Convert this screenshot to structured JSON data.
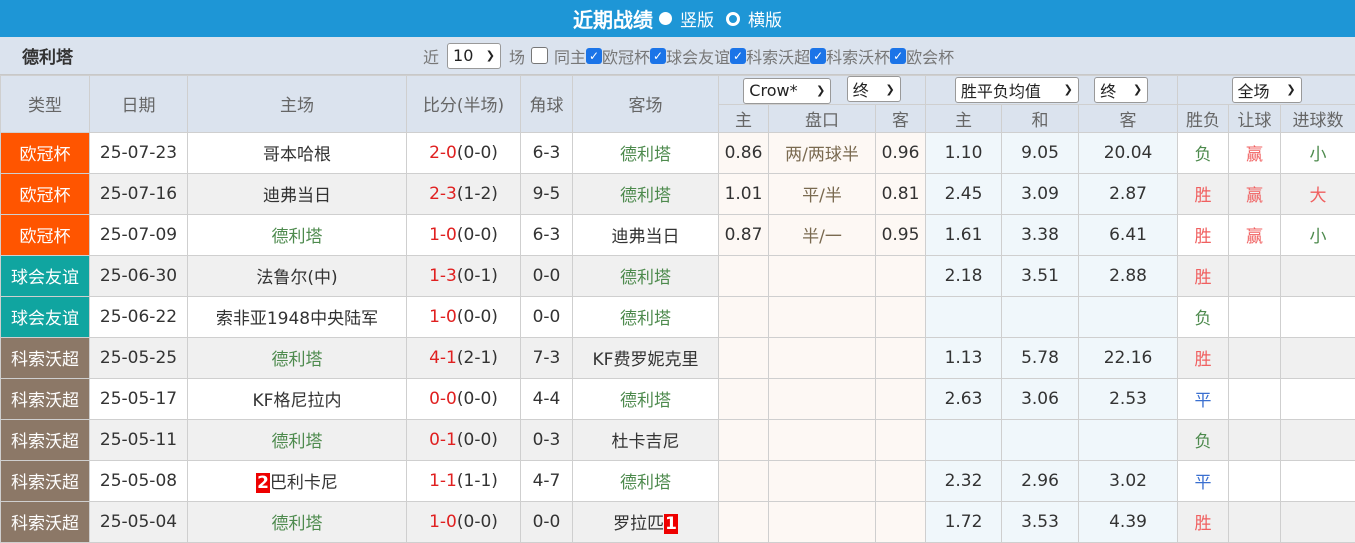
{
  "title": {
    "text": "近期战绩",
    "option_vertical": "竖版",
    "option_horizontal": "横版",
    "selected": "竖版"
  },
  "filter": {
    "team": "德利塔",
    "near_label": "近",
    "count": "10",
    "count_unit": "场",
    "same_home_label": "同主",
    "same_home_checked": false,
    "leagues": [
      {
        "label": "欧冠杯",
        "checked": true
      },
      {
        "label": "球会友谊",
        "checked": true
      },
      {
        "label": "科索沃超",
        "checked": true
      },
      {
        "label": "科索沃杯",
        "checked": true
      },
      {
        "label": "欧会杯",
        "checked": true
      }
    ]
  },
  "header": {
    "type": "类型",
    "date": "日期",
    "home": "主场",
    "score": "比分(半场)",
    "corner": "角球",
    "away": "客场",
    "ah_company": "Crow*",
    "ah_stage": "终",
    "eu_type": "胜平负均值",
    "eu_stage": "终",
    "period": "全场",
    "ah_home": "主",
    "ah_line": "盘口",
    "ah_away": "客",
    "eu_home": "主",
    "eu_draw": "和",
    "eu_away": "客",
    "result": "胜负",
    "handicap": "让球",
    "goals": "进球数"
  },
  "colors": {
    "欧冠杯": "#ff5500",
    "球会友谊": "#10a5a0",
    "科索沃超": "#8c7867",
    "team_highlight": "#4d8a4d",
    "score": "#e02020"
  },
  "rows": [
    {
      "type": "欧冠杯",
      "date": "25-07-23",
      "home": "哥本哈根",
      "home_hl": false,
      "ft": "2-0",
      "ht": "(0-0)",
      "corner": "6-3",
      "away": "德利塔",
      "away_hl": true,
      "ah_h": "0.86",
      "ah_line": "两/两球半",
      "ah_a": "0.96",
      "eu_h": "1.10",
      "eu_d": "9.05",
      "eu_a": "20.04",
      "result": "负",
      "handicap": "赢",
      "goals": "小"
    },
    {
      "type": "欧冠杯",
      "date": "25-07-16",
      "home": "迪弗当日",
      "home_hl": false,
      "ft": "2-3",
      "ht": "(1-2)",
      "corner": "9-5",
      "away": "德利塔",
      "away_hl": true,
      "ah_h": "1.01",
      "ah_line": "平/半",
      "ah_a": "0.81",
      "eu_h": "2.45",
      "eu_d": "3.09",
      "eu_a": "2.87",
      "result": "胜",
      "handicap": "赢",
      "goals": "大"
    },
    {
      "type": "欧冠杯",
      "date": "25-07-09",
      "home": "德利塔",
      "home_hl": true,
      "ft": "1-0",
      "ht": "(0-0)",
      "corner": "6-3",
      "away": "迪弗当日",
      "away_hl": false,
      "ah_h": "0.87",
      "ah_line": "半/一",
      "ah_a": "0.95",
      "eu_h": "1.61",
      "eu_d": "3.38",
      "eu_a": "6.41",
      "result": "胜",
      "handicap": "赢",
      "goals": "小"
    },
    {
      "type": "球会友谊",
      "date": "25-06-30",
      "home": "法鲁尔(中)",
      "home_hl": false,
      "ft": "1-3",
      "ht": "(0-1)",
      "corner": "0-0",
      "away": "德利塔",
      "away_hl": true,
      "ah_h": "",
      "ah_line": "",
      "ah_a": "",
      "eu_h": "2.18",
      "eu_d": "3.51",
      "eu_a": "2.88",
      "result": "胜",
      "handicap": "",
      "goals": ""
    },
    {
      "type": "球会友谊",
      "date": "25-06-22",
      "home": "索非亚1948中央陆军",
      "home_hl": false,
      "ft": "1-0",
      "ht": "(0-0)",
      "corner": "0-0",
      "away": "德利塔",
      "away_hl": true,
      "ah_h": "",
      "ah_line": "",
      "ah_a": "",
      "eu_h": "",
      "eu_d": "",
      "eu_a": "",
      "result": "负",
      "handicap": "",
      "goals": ""
    },
    {
      "type": "科索沃超",
      "date": "25-05-25",
      "home": "德利塔",
      "home_hl": true,
      "ft": "4-1",
      "ht": "(2-1)",
      "corner": "7-3",
      "away": "KF费罗妮克里",
      "away_hl": false,
      "ah_h": "",
      "ah_line": "",
      "ah_a": "",
      "eu_h": "1.13",
      "eu_d": "5.78",
      "eu_a": "22.16",
      "result": "胜",
      "handicap": "",
      "goals": ""
    },
    {
      "type": "科索沃超",
      "date": "25-05-17",
      "home": "KF格尼拉内",
      "home_hl": false,
      "ft": "0-0",
      "ht": "(0-0)",
      "corner": "4-4",
      "away": "德利塔",
      "away_hl": true,
      "ah_h": "",
      "ah_line": "",
      "ah_a": "",
      "eu_h": "2.63",
      "eu_d": "3.06",
      "eu_a": "2.53",
      "result": "平",
      "handicap": "",
      "goals": ""
    },
    {
      "type": "科索沃超",
      "date": "25-05-11",
      "home": "德利塔",
      "home_hl": true,
      "ft": "0-1",
      "ht": "(0-0)",
      "corner": "0-3",
      "away": "杜卡吉尼",
      "away_hl": false,
      "ah_h": "",
      "ah_line": "",
      "ah_a": "",
      "eu_h": "",
      "eu_d": "",
      "eu_a": "",
      "result": "负",
      "handicap": "",
      "goals": ""
    },
    {
      "type": "科索沃超",
      "date": "25-05-08",
      "home": "巴利卡尼",
      "home_hl": false,
      "home_card": "2",
      "ft": "1-1",
      "ht": "(1-1)",
      "corner": "4-7",
      "away": "德利塔",
      "away_hl": true,
      "ah_h": "",
      "ah_line": "",
      "ah_a": "",
      "eu_h": "2.32",
      "eu_d": "2.96",
      "eu_a": "3.02",
      "result": "平",
      "handicap": "",
      "goals": ""
    },
    {
      "type": "科索沃超",
      "date": "25-05-04",
      "home": "德利塔",
      "home_hl": true,
      "ft": "1-0",
      "ht": "(0-0)",
      "corner": "0-0",
      "away": "罗拉匹",
      "away_hl": false,
      "away_card": "1",
      "ah_h": "",
      "ah_line": "",
      "ah_a": "",
      "eu_h": "1.72",
      "eu_d": "3.53",
      "eu_a": "4.39",
      "result": "胜",
      "handicap": "",
      "goals": ""
    }
  ]
}
